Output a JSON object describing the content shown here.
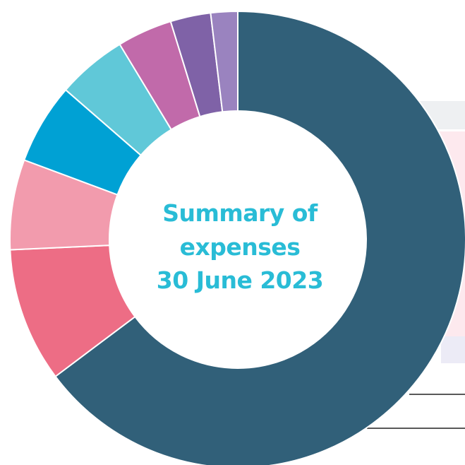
{
  "chart_data": {
    "type": "pie",
    "style": "donut",
    "title_lines": [
      "Summary of",
      "expenses",
      "30 June 2023"
    ],
    "legend": "none",
    "slices": [
      {
        "value": 68.0,
        "color": "#316079"
      },
      {
        "value": 10.0,
        "color": "#ed6d85"
      },
      {
        "value": 6.7,
        "color": "#f29bad"
      },
      {
        "value": 6.0,
        "color": "#00a1d4"
      },
      {
        "value": 5.2,
        "color": "#60c8d8"
      },
      {
        "value": 4.1,
        "color": "#c16aaa"
      },
      {
        "value": 3.0,
        "color": "#7f62a7"
      },
      {
        "value": 2.0,
        "color": "#9a83bf"
      }
    ]
  },
  "background": {
    "panel_colors": [
      "#eef0f2",
      "#fde9ee",
      "#ecebf6"
    ],
    "rule_color": "#222222"
  }
}
